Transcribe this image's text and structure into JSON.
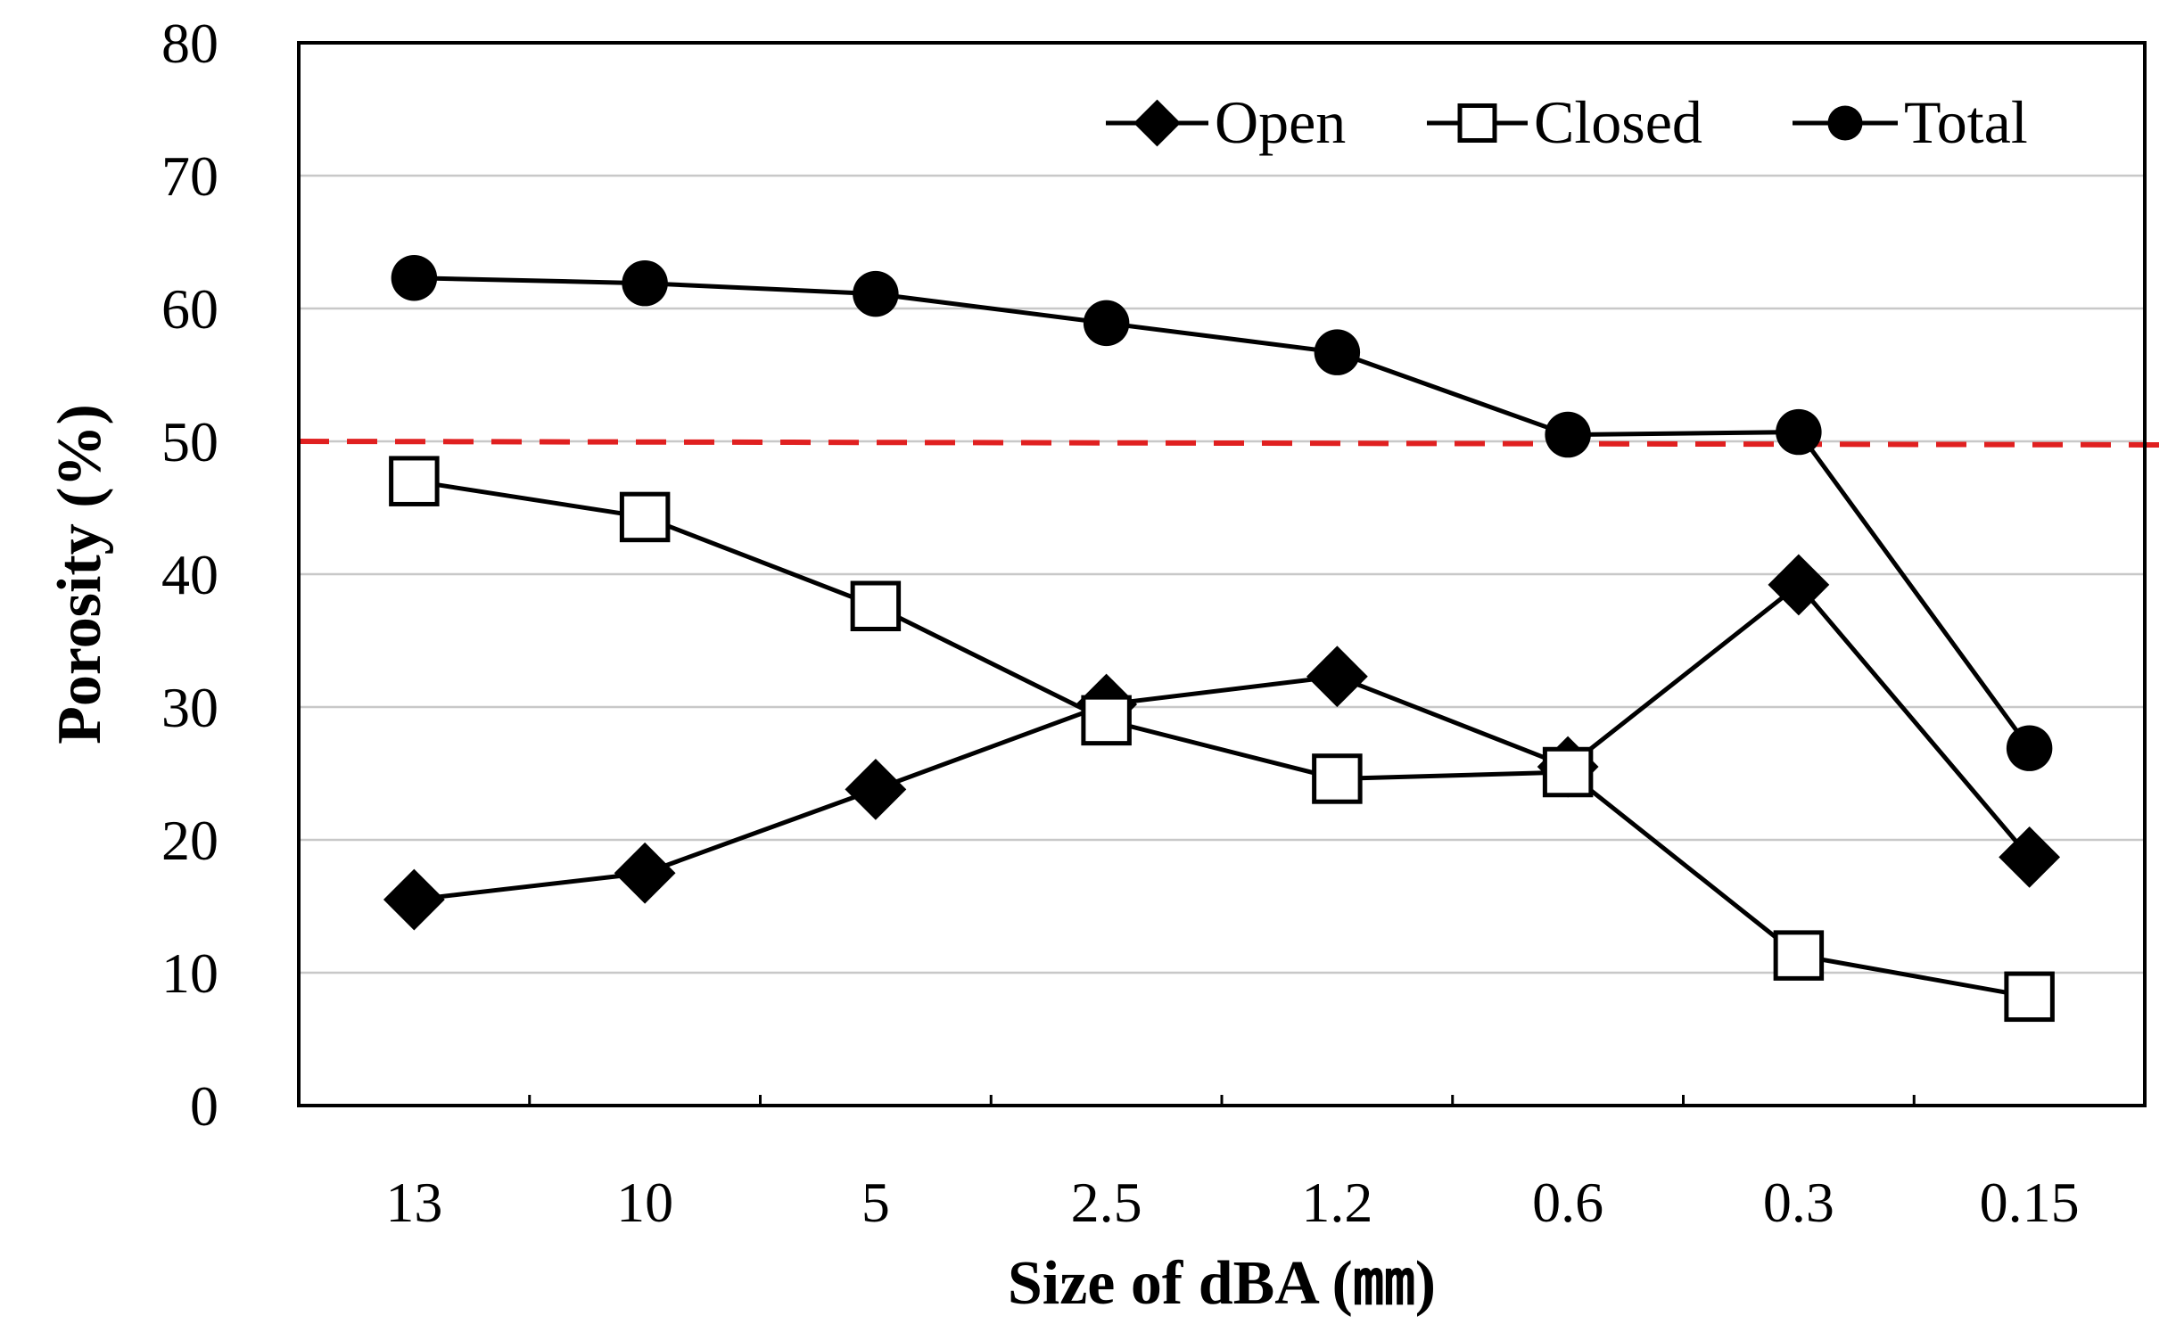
{
  "chart_data": {
    "type": "line",
    "title": "",
    "xlabel": "Size of dBA (㎜)",
    "ylabel": "Porosity (%)",
    "categories": [
      "13",
      "10",
      "5",
      "2.5",
      "1.2",
      "0.6",
      "0.3",
      "0.15"
    ],
    "ylim": [
      0,
      80
    ],
    "yticks": [
      0,
      10,
      20,
      30,
      40,
      50,
      60,
      70,
      80
    ],
    "grid": true,
    "legend_position": "top-right",
    "series": [
      {
        "name": "Open",
        "marker": "diamond-filled",
        "values": [
          15.5,
          17.5,
          23.8,
          30.2,
          32.3,
          25.5,
          39.2,
          18.7
        ]
      },
      {
        "name": "Closed",
        "marker": "square-open",
        "values": [
          47.0,
          44.3,
          37.6,
          29.0,
          24.6,
          25.1,
          11.3,
          8.2
        ]
      },
      {
        "name": "Total",
        "marker": "circle-filled",
        "values": [
          62.3,
          61.9,
          61.1,
          58.9,
          56.7,
          50.5,
          50.7,
          26.9
        ]
      }
    ],
    "reference_line": {
      "value": 50,
      "color": "#e02020",
      "style": "dashed"
    }
  }
}
